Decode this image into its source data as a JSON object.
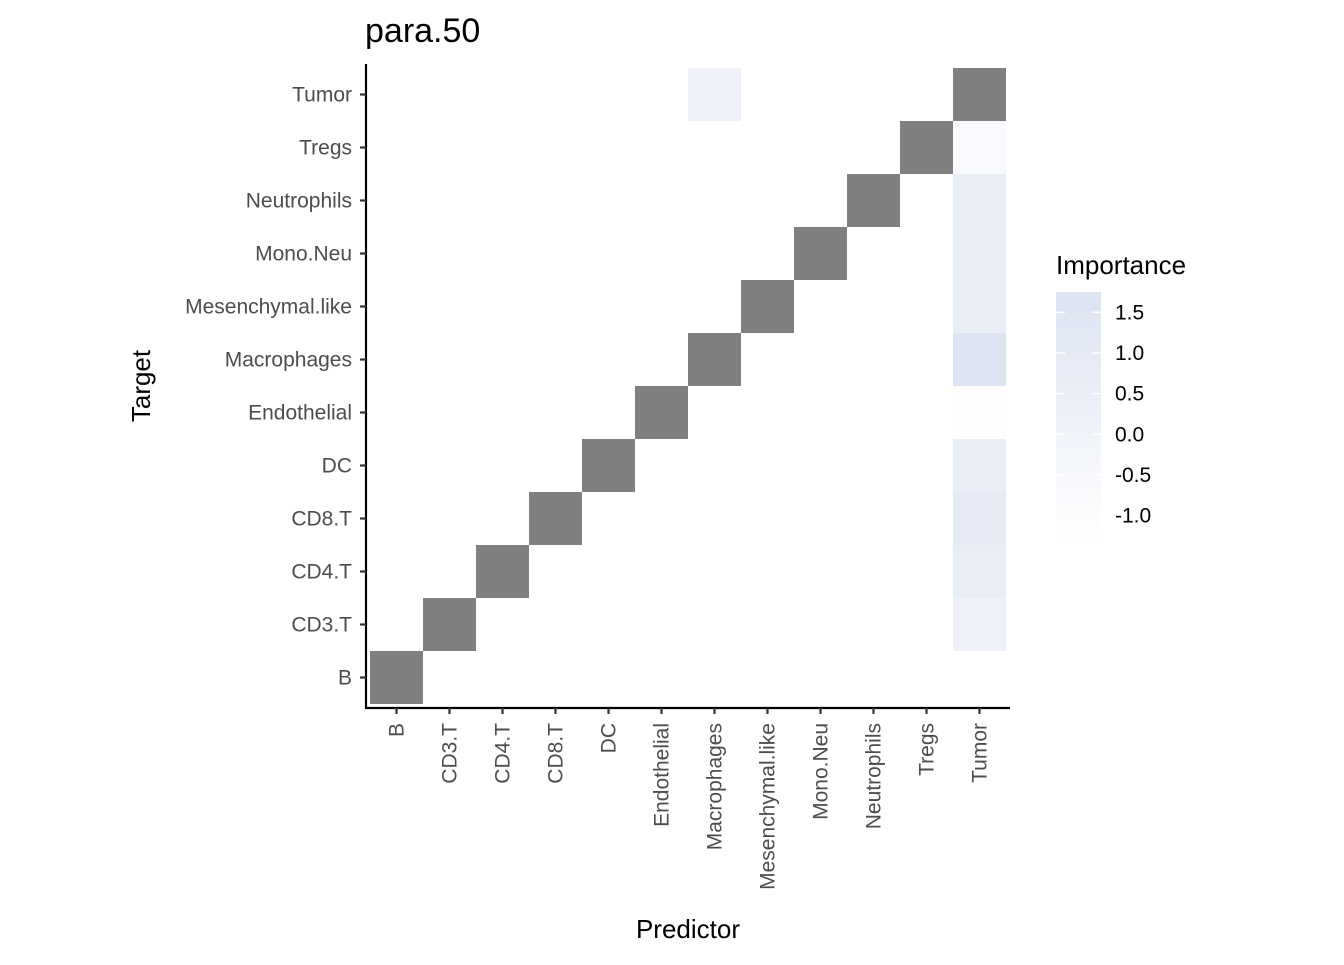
{
  "chart_data": {
    "type": "heatmap",
    "title": "para.50",
    "xlabel": "Predictor",
    "ylabel": "Target",
    "x_categories": [
      "B",
      "CD3.T",
      "CD4.T",
      "CD8.T",
      "DC",
      "Endothelial",
      "Macrophages",
      "Mesenchymal.like",
      "Mono.Neu",
      "Neutrophils",
      "Tregs",
      "Tumor"
    ],
    "y_categories": [
      "B",
      "CD3.T",
      "CD4.T",
      "CD8.T",
      "DC",
      "Endothelial",
      "Macrophages",
      "Mesenchymal.like",
      "Mono.Neu",
      "Neutrophils",
      "Tregs",
      "Tumor"
    ],
    "diagonal_fill": "#7f7f7f",
    "color_scale": {
      "low": "#ffffff",
      "high": "#dce3f1",
      "min": -1.3,
      "max": 1.75
    },
    "cells": [
      {
        "x": "Tumor",
        "y": "CD3.T",
        "value": 0.2
      },
      {
        "x": "Tumor",
        "y": "CD4.T",
        "value": 0.6
      },
      {
        "x": "Tumor",
        "y": "CD8.T",
        "value": 1.0
      },
      {
        "x": "Tumor",
        "y": "DC",
        "value": 0.5
      },
      {
        "x": "Tumor",
        "y": "Endothelial",
        "value": -1.2
      },
      {
        "x": "Tumor",
        "y": "Macrophages",
        "value": 1.6
      },
      {
        "x": "Tumor",
        "y": "Mesenchymal.like",
        "value": 0.7
      },
      {
        "x": "Tumor",
        "y": "Mono.Neu",
        "value": 0.5
      },
      {
        "x": "Tumor",
        "y": "Neutrophils",
        "value": 0.6
      },
      {
        "x": "Tumor",
        "y": "Tregs",
        "value": -0.6
      },
      {
        "x": "Macrophages",
        "y": "Tumor",
        "value": 0.1
      }
    ],
    "legend": {
      "title": "Importance",
      "breaks": [
        1.5,
        1.0,
        0.5,
        0.0,
        -0.5,
        -1.0
      ],
      "labels": [
        "1.5",
        "1.0",
        "0.5",
        "0.0",
        "-0.5",
        "-1.0"
      ],
      "position": "right"
    }
  }
}
